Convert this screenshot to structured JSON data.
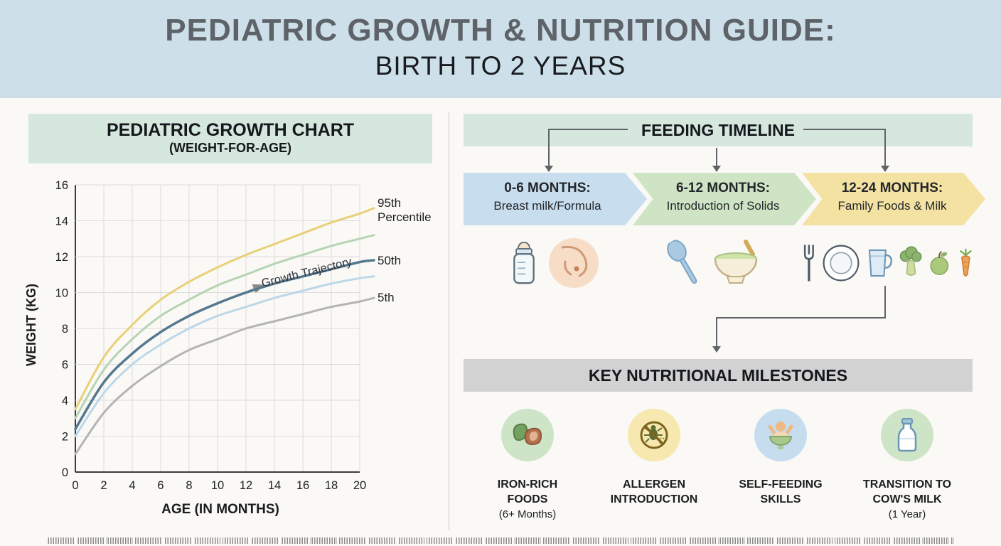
{
  "palette": {
    "banner_blue": "#cddfe9",
    "mint_green": "#d6e8de",
    "gray_band": "#d2d2d2"
  },
  "header": {
    "title_line1": "PEDIATRIC GROWTH & NUTRITION GUIDE:",
    "title_line2": "BIRTH TO 2 YEARS"
  },
  "growth_chart": {
    "title": "PEDIATRIC GROWTH CHART",
    "subtitle": "(WEIGHT-FOR-AGE)",
    "xlabel": "AGE (IN MONTHS)",
    "ylabel": "WEIGHT (KG)",
    "trajectory_label": "Growth Trajectory",
    "labels": {
      "p95_line1": "95th",
      "p95_line2": "Percentile",
      "p50": "50th",
      "p5": "5th"
    }
  },
  "chart_data": {
    "type": "line",
    "title": "PEDIATRIC GROWTH CHART (WEIGHT-FOR-AGE)",
    "xlabel": "AGE (IN MONTHS)",
    "ylabel": "WEIGHT (KG)",
    "xlim": [
      0,
      21
    ],
    "ylim": [
      0,
      16
    ],
    "xticks": [
      0,
      2,
      4,
      6,
      8,
      10,
      12,
      14,
      16,
      18,
      20
    ],
    "yticks": [
      0,
      2,
      4,
      6,
      8,
      10,
      12,
      14,
      16
    ],
    "grid": true,
    "annotation": "Growth Trajectory",
    "x": [
      0,
      2,
      4,
      6,
      8,
      10,
      12,
      14,
      16,
      18,
      20,
      21
    ],
    "series": [
      {
        "name": "95th Percentile",
        "color": "#e9d078",
        "width": 3,
        "values": [
          3.5,
          6.4,
          8.2,
          9.6,
          10.6,
          11.4,
          12.1,
          12.7,
          13.3,
          13.9,
          14.4,
          14.7
        ]
      },
      {
        "name": "75th Percentile (unlabeled)",
        "color": "#b6d4b4",
        "width": 3,
        "values": [
          3.0,
          5.7,
          7.4,
          8.7,
          9.6,
          10.4,
          11.0,
          11.6,
          12.1,
          12.6,
          13.0,
          13.2
        ]
      },
      {
        "name": "50th Percentile",
        "color": "#55788f",
        "width": 3.5,
        "values": [
          2.4,
          5.0,
          6.6,
          7.8,
          8.7,
          9.4,
          10.0,
          10.5,
          10.9,
          11.3,
          11.7,
          11.8
        ]
      },
      {
        "name": "25th Percentile (unlabeled)",
        "color": "#bcd8e8",
        "width": 3,
        "values": [
          2.0,
          4.4,
          6.0,
          7.1,
          8.0,
          8.7,
          9.2,
          9.7,
          10.1,
          10.5,
          10.8,
          10.9
        ]
      },
      {
        "name": "5th Percentile",
        "color": "#b4b4b4",
        "width": 3,
        "values": [
          1.0,
          3.3,
          4.8,
          5.9,
          6.8,
          7.4,
          8.0,
          8.4,
          8.8,
          9.2,
          9.5,
          9.7
        ]
      }
    ]
  },
  "timeline": {
    "title": "FEEDING TIMELINE",
    "stages": [
      {
        "heading": "0-6 MONTHS:",
        "text": "Breast milk/Formula",
        "color": "#c8ddee",
        "icons": [
          "baby-bottle",
          "breastfeeding"
        ]
      },
      {
        "heading": "6-12 MONTHS:",
        "text": "Introduction of Solids",
        "color": "#cfe4c4",
        "icons": [
          "spoon",
          "baby-food-bowl"
        ]
      },
      {
        "heading": "12-24 MONTHS:",
        "text": "Family Foods & Milk",
        "color": "#f4e2a2",
        "icons": [
          "fork",
          "plate",
          "cup",
          "broccoli",
          "apple",
          "carrot"
        ]
      }
    ]
  },
  "milestones": {
    "title": "KEY NUTRITIONAL MILESTONES",
    "items": [
      {
        "name": "IRON-RICH FOODS",
        "note": "(6+ Months)",
        "circle_color": "#cde4c6",
        "icon": "iron-rich-foods"
      },
      {
        "name": "ALLERGEN INTRODUCTION",
        "note": "",
        "circle_color": "#f6e8ae",
        "icon": "allergen-warning"
      },
      {
        "name": "SELF-FEEDING SKILLS",
        "note": "",
        "circle_color": "#c6dcef",
        "icon": "self-feeding"
      },
      {
        "name": "TRANSITION TO COW'S MILK",
        "note": "(1 Year)",
        "circle_color": "#cde4c6",
        "icon": "milk-bottle"
      }
    ]
  }
}
